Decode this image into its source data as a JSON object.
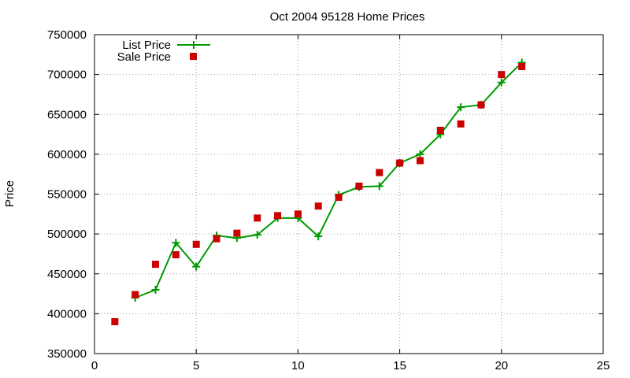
{
  "chart_data": {
    "type": "line",
    "title": "Oct 2004 95128 Home Prices",
    "xlabel": "",
    "ylabel": "Price",
    "xlim": [
      0,
      25
    ],
    "ylim": [
      350000,
      750000
    ],
    "xticks": [
      "0",
      "5",
      "10",
      "15",
      "20",
      "25"
    ],
    "yticks": [
      "350000",
      "400000",
      "450000",
      "500000",
      "550000",
      "600000",
      "650000",
      "700000",
      "750000"
    ],
    "grid": true,
    "legend_position": "top-left",
    "series": [
      {
        "name": "List Price",
        "style": "line-with-plus-markers",
        "color": "#009900",
        "x": [
          2,
          3,
          4,
          5,
          6,
          7,
          8,
          9,
          10,
          11,
          12,
          13,
          14,
          15,
          16,
          17,
          18,
          19,
          20,
          21
        ],
        "y": [
          420000,
          430000,
          489000,
          459000,
          498000,
          495000,
          499000,
          520000,
          520000,
          497000,
          549000,
          559000,
          560000,
          589000,
          600000,
          625000,
          659000,
          662000,
          690000,
          715000
        ]
      },
      {
        "name": "Sale Price",
        "style": "square-markers",
        "color": "#cc0000",
        "x": [
          1,
          2,
          3,
          4,
          5,
          6,
          7,
          8,
          9,
          10,
          11,
          12,
          13,
          14,
          15,
          16,
          17,
          18,
          19,
          20,
          21
        ],
        "y": [
          390000,
          424000,
          462000,
          474000,
          487000,
          494000,
          501000,
          520000,
          523000,
          525000,
          535000,
          546000,
          560000,
          577000,
          589000,
          592000,
          630000,
          638000,
          662000,
          700000,
          710000
        ]
      }
    ]
  }
}
